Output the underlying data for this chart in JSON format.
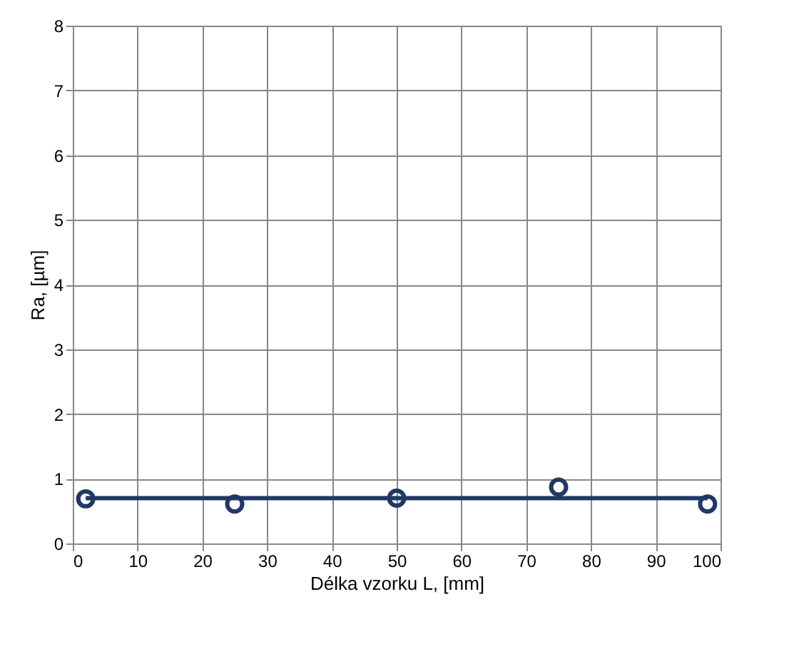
{
  "chart_data": {
    "type": "scatter",
    "xlabel": "Délka vzorku L, [mm]",
    "ylabel": "Ra, [µm]",
    "xlim": [
      0,
      100
    ],
    "xticks": [
      0,
      10,
      20,
      30,
      40,
      50,
      60,
      70,
      80,
      90,
      100
    ],
    "ylim": [
      0,
      8
    ],
    "yticks": [
      0,
      1,
      2,
      3,
      4,
      5,
      6,
      7,
      8
    ],
    "grid": true,
    "marker": "circle",
    "series": [
      {
        "color": "#1f3864",
        "x": [
          2,
          25,
          50,
          75,
          98
        ],
        "values": [
          0.69,
          0.61,
          0.7,
          0.87,
          0.61
        ]
      },
      {
        "type": "line",
        "color": "#1f3864",
        "line_style": "solid",
        "marker": "none",
        "x": [
          2,
          98
        ],
        "values": [
          0.7,
          0.7
        ]
      }
    ]
  }
}
